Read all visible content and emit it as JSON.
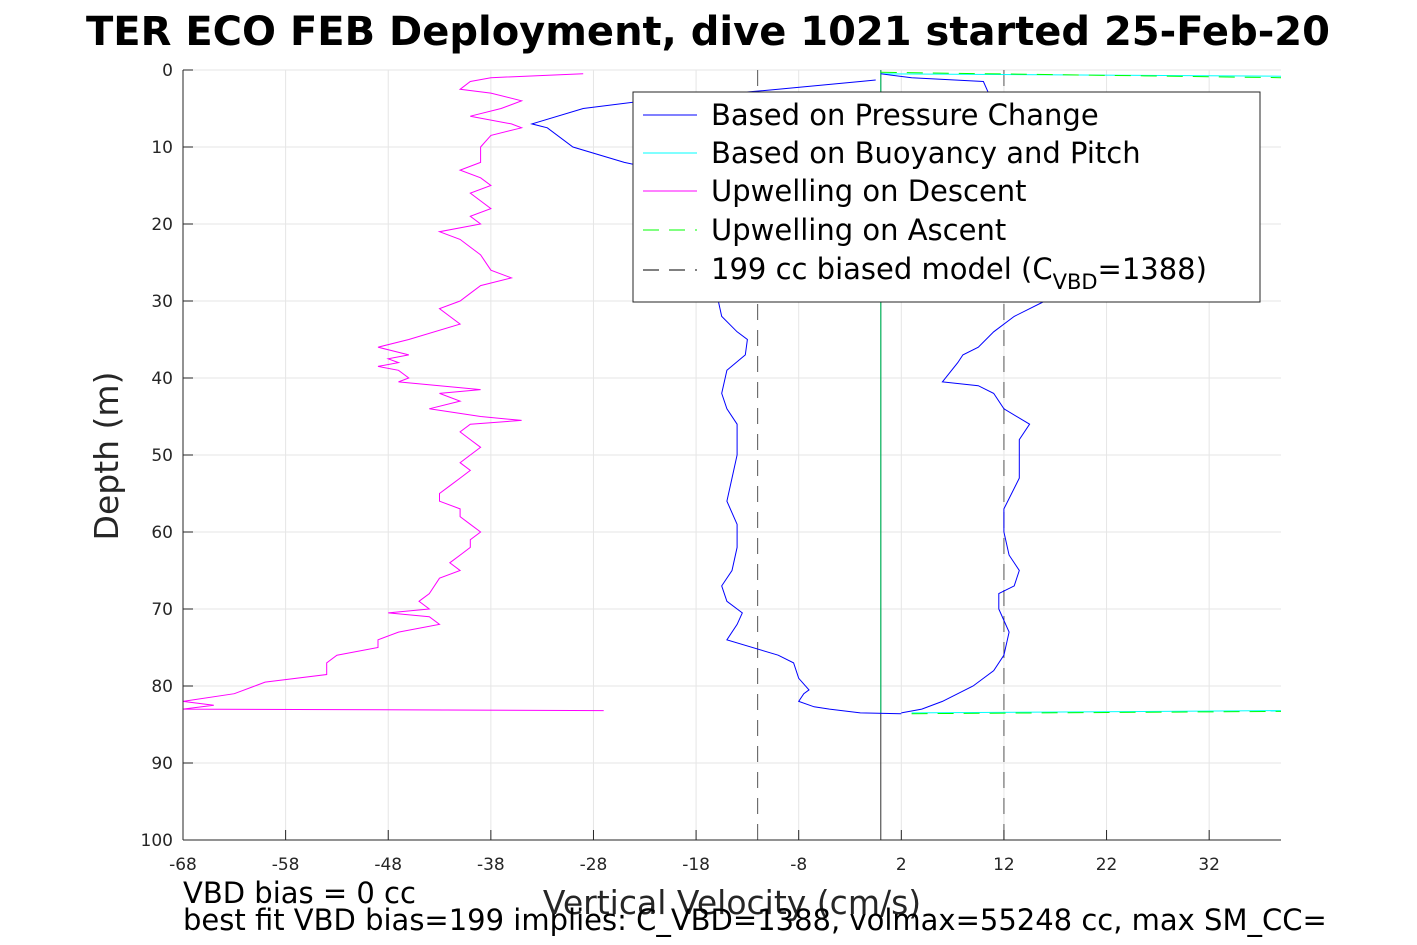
{
  "chart_data": {
    "type": "line",
    "title": "TER ECO FEB Deployment, dive 1021 started 25-Feb-20",
    "xlabel": "Vertical Velocity (cm/s)",
    "ylabel": "Depth (m)",
    "xlim": [
      -68,
      39
    ],
    "ylim": [
      0,
      100
    ],
    "y_reversed": true,
    "grid": true,
    "legend_position": "top-right",
    "x_ticks": [
      -68,
      -58,
      -48,
      -38,
      -28,
      -18,
      -8,
      2,
      12,
      22,
      32
    ],
    "y_ticks": [
      0,
      10,
      20,
      30,
      40,
      50,
      60,
      70,
      80,
      90,
      100
    ],
    "x_tick_labels": [
      "-68",
      "-58",
      "-48",
      "-38",
      "-28",
      "-18",
      "-8",
      "2",
      "12",
      "22",
      "32"
    ],
    "y_tick_labels": [
      "0",
      "10",
      "20",
      "30",
      "40",
      "50",
      "60",
      "70",
      "80",
      "90",
      "100"
    ],
    "legend": [
      {
        "label": "Based on Pressure Change",
        "color": "#0000ff",
        "dash": "solid"
      },
      {
        "label": "Based on Buoyancy and Pitch",
        "color": "#00ffff",
        "dash": "solid"
      },
      {
        "label": "Upwelling on Descent",
        "color": "#ff00ff",
        "dash": "solid"
      },
      {
        "label": "Upwelling on Ascent",
        "color": "#00ff00",
        "dash": "dashed"
      },
      {
        "label_main": "199 cc biased model (C",
        "label_sub": "VBD",
        "label_end": "=1388)",
        "color": "#000000",
        "dash": "dashed"
      }
    ],
    "notes": [
      "VBD bias = 0 cc",
      "best fit VBD bias=199 implies: C_VBD=1388, volmax=55248 cc, max SM_CC="
    ],
    "series": [
      {
        "name": "Based on Pressure Change",
        "color": "#0000ff",
        "descent": [
          [
            -0.5,
            1.3
          ],
          [
            -2,
            1.5
          ],
          [
            -10,
            2.5
          ],
          [
            -23,
            4
          ],
          [
            -29,
            5
          ],
          [
            -34,
            7
          ],
          [
            -32.5,
            7.5
          ],
          [
            -30,
            10
          ],
          [
            -25,
            12
          ],
          [
            -18,
            14
          ],
          [
            -14,
            20
          ],
          [
            -14,
            25
          ],
          [
            -16,
            29
          ],
          [
            -15.5,
            32
          ],
          [
            -14,
            34
          ],
          [
            -13,
            35
          ],
          [
            -13.2,
            37
          ],
          [
            -15,
            39
          ],
          [
            -15.5,
            42
          ],
          [
            -15,
            44
          ],
          [
            -14,
            46
          ],
          [
            -14,
            50
          ],
          [
            -14.5,
            53
          ],
          [
            -15,
            56
          ],
          [
            -14,
            59
          ],
          [
            -14,
            62
          ],
          [
            -14.5,
            65
          ],
          [
            -15.5,
            67
          ],
          [
            -15,
            69
          ],
          [
            -13.5,
            70.5
          ],
          [
            -14,
            72
          ],
          [
            -15,
            74
          ],
          [
            -10,
            76
          ],
          [
            -8.5,
            77
          ],
          [
            -8,
            79
          ],
          [
            -7,
            80.5
          ],
          [
            -7.5,
            81
          ],
          [
            -8,
            82
          ],
          [
            -6.5,
            82.7
          ],
          [
            -5,
            83
          ],
          [
            -2,
            83.5
          ],
          [
            2,
            83.6
          ]
        ],
        "ascent": [
          [
            2,
            83.5
          ],
          [
            4,
            83
          ],
          [
            6,
            82
          ],
          [
            9,
            80
          ],
          [
            11,
            78
          ],
          [
            12,
            76
          ],
          [
            12.5,
            73
          ],
          [
            11.5,
            70
          ],
          [
            11.5,
            68
          ],
          [
            13,
            67
          ],
          [
            13.5,
            65
          ],
          [
            12.5,
            63
          ],
          [
            12,
            60
          ],
          [
            12,
            57
          ],
          [
            13.5,
            53
          ],
          [
            13.5,
            48
          ],
          [
            14.5,
            46
          ],
          [
            12,
            44
          ],
          [
            11,
            42
          ],
          [
            9.5,
            41
          ],
          [
            6,
            40.5
          ],
          [
            7.5,
            38
          ],
          [
            8,
            37
          ],
          [
            9.5,
            36
          ],
          [
            11,
            34
          ],
          [
            13,
            32
          ],
          [
            16,
            30
          ],
          [
            23,
            26
          ],
          [
            27,
            23
          ],
          [
            25,
            20
          ],
          [
            20,
            17
          ],
          [
            16,
            14
          ],
          [
            12,
            10
          ],
          [
            10,
            6
          ],
          [
            10.5,
            3
          ],
          [
            10,
            1.5
          ],
          [
            3,
            1
          ],
          [
            0,
            0.5
          ]
        ]
      },
      {
        "name": "Based on Buoyancy and Pitch",
        "color": "#00ffff",
        "descent": [
          [
            0,
            0
          ],
          [
            0,
            83.5
          ]
        ],
        "ascent": [
          [
            3,
            83.5
          ],
          [
            39,
            83.2
          ]
        ],
        "surface": [
          [
            0,
            0.5
          ],
          [
            39,
            0.8
          ]
        ]
      },
      {
        "name": "Upwelling on Descent",
        "color": "#ff00ff",
        "points": [
          [
            -29,
            0.5
          ],
          [
            -38,
            1
          ],
          [
            -40,
            1.5
          ],
          [
            -41,
            2.5
          ],
          [
            -38,
            3
          ],
          [
            -35,
            4
          ],
          [
            -37,
            5
          ],
          [
            -40,
            6
          ],
          [
            -36,
            7
          ],
          [
            -35,
            7.5
          ],
          [
            -38,
            8.5
          ],
          [
            -39,
            10
          ],
          [
            -39,
            12
          ],
          [
            -41,
            13
          ],
          [
            -39,
            14
          ],
          [
            -38,
            15
          ],
          [
            -40,
            16
          ],
          [
            -39,
            17
          ],
          [
            -38,
            18
          ],
          [
            -40,
            19
          ],
          [
            -39,
            20
          ],
          [
            -43,
            21
          ],
          [
            -41,
            22
          ],
          [
            -40,
            23
          ],
          [
            -39,
            24
          ],
          [
            -38,
            26
          ],
          [
            -36,
            27
          ],
          [
            -39,
            28
          ],
          [
            -40,
            29
          ],
          [
            -41,
            30
          ],
          [
            -43,
            31
          ],
          [
            -42,
            32
          ],
          [
            -41,
            33
          ],
          [
            -46,
            35
          ],
          [
            -49,
            36
          ],
          [
            -46,
            37
          ],
          [
            -48,
            37.5
          ],
          [
            -47,
            38
          ],
          [
            -49,
            38.5
          ],
          [
            -47,
            39
          ],
          [
            -46,
            40
          ],
          [
            -47,
            40.5
          ],
          [
            -43,
            41
          ],
          [
            -39,
            41.5
          ],
          [
            -43,
            42
          ],
          [
            -41,
            43
          ],
          [
            -44,
            44
          ],
          [
            -39,
            45
          ],
          [
            -35,
            45.5
          ],
          [
            -40,
            46
          ],
          [
            -41,
            47
          ],
          [
            -40,
            48
          ],
          [
            -39,
            49
          ],
          [
            -40,
            50
          ],
          [
            -41,
            51
          ],
          [
            -40,
            52
          ],
          [
            -41,
            53
          ],
          [
            -42,
            54
          ],
          [
            -43,
            55
          ],
          [
            -43,
            56
          ],
          [
            -41,
            57
          ],
          [
            -41,
            58
          ],
          [
            -40,
            59
          ],
          [
            -39,
            60
          ],
          [
            -40,
            61
          ],
          [
            -40,
            62
          ],
          [
            -41,
            63
          ],
          [
            -42,
            64
          ],
          [
            -41,
            65
          ],
          [
            -43,
            66
          ],
          [
            -44,
            68
          ],
          [
            -45,
            69
          ],
          [
            -44,
            70
          ],
          [
            -48,
            70.5
          ],
          [
            -44,
            71
          ],
          [
            -43,
            72
          ],
          [
            -47,
            73
          ],
          [
            -49,
            74
          ],
          [
            -49,
            75
          ],
          [
            -53,
            76
          ],
          [
            -54,
            77
          ],
          [
            -54,
            78.5
          ],
          [
            -60,
            79.5
          ],
          [
            -63,
            81
          ],
          [
            -68,
            82
          ],
          [
            -65,
            82.5
          ],
          [
            -68,
            83
          ],
          [
            -27,
            83.2
          ]
        ]
      },
      {
        "name": "Upwelling on Ascent",
        "color": "#00ff00",
        "points": [
          [
            3,
            83.6
          ],
          [
            39,
            83.3
          ]
        ],
        "surface": [
          [
            0,
            0.3
          ],
          [
            39,
            1
          ]
        ]
      },
      {
        "name": "199 cc biased model",
        "color": "#000000",
        "lines": [
          {
            "x": -12,
            "from": 0,
            "to": 100
          },
          {
            "x": 12,
            "from": 0,
            "to": 100
          },
          {
            "x": 0,
            "from": 0,
            "to": 100
          }
        ]
      }
    ]
  }
}
